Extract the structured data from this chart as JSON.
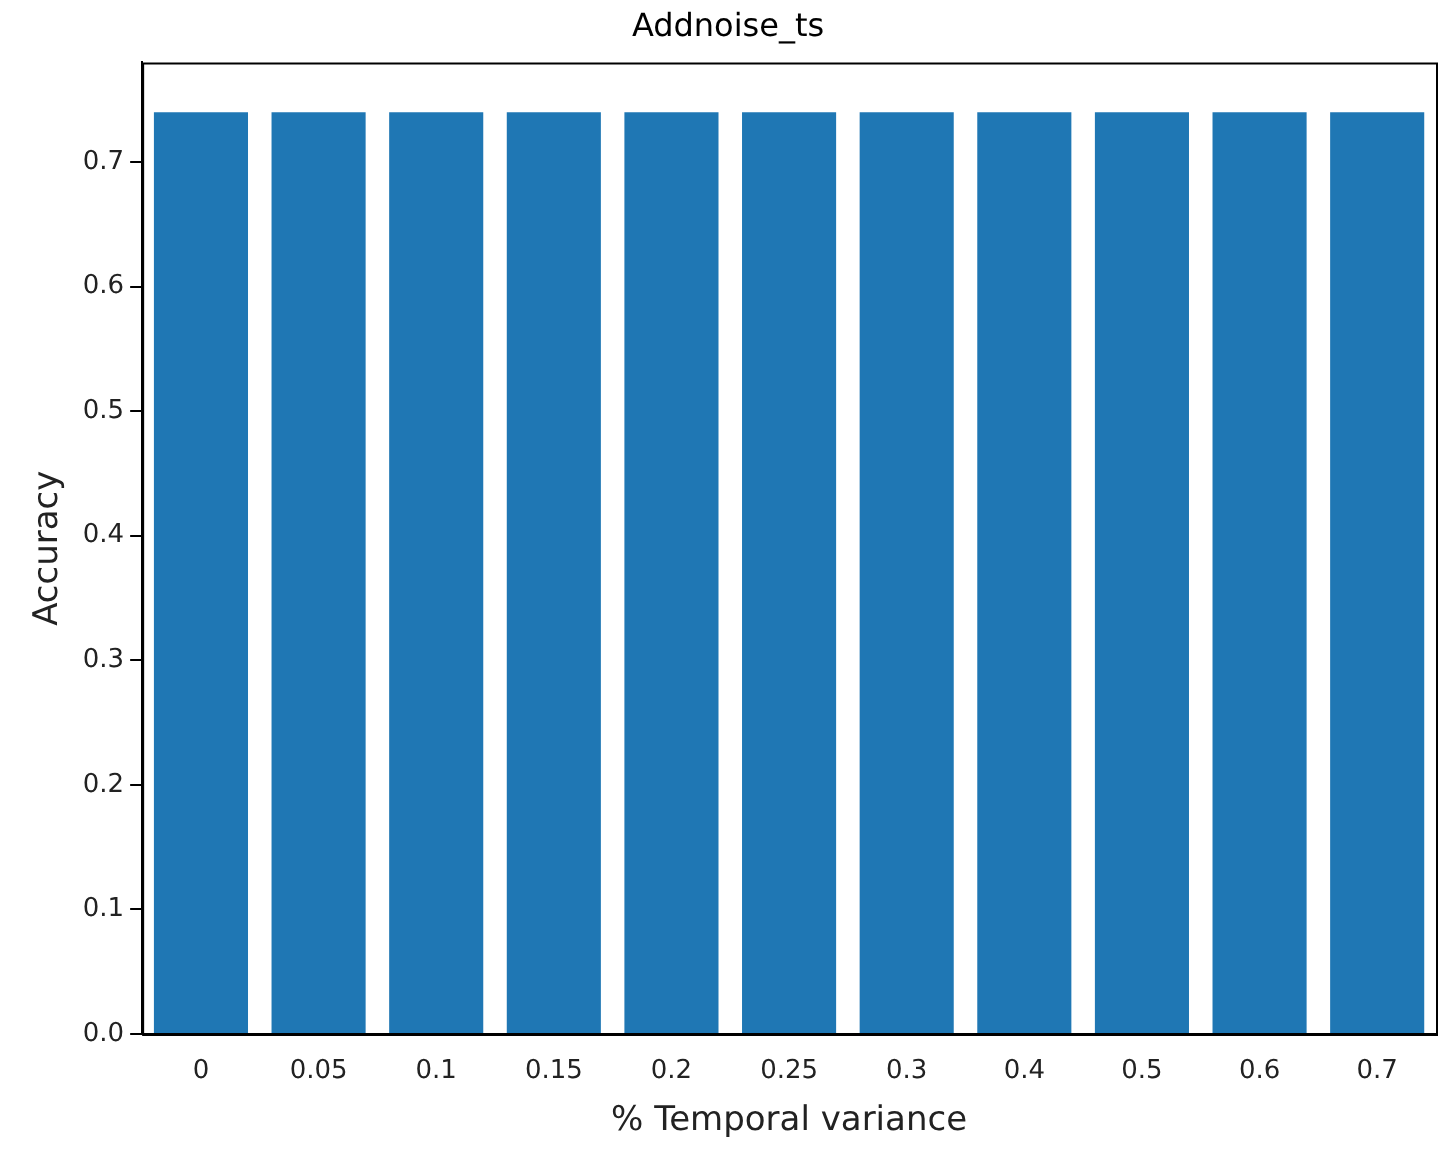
{
  "chart_data": {
    "type": "bar",
    "title": "Addnoise_ts",
    "xlabel": "% Temporal variance",
    "ylabel": "Accuracy",
    "categories": [
      "0",
      "0.05",
      "0.1",
      "0.15",
      "0.2",
      "0.25",
      "0.3",
      "0.4",
      "0.5",
      "0.6",
      "0.7"
    ],
    "values": [
      0.74,
      0.74,
      0.74,
      0.74,
      0.74,
      0.74,
      0.74,
      0.74,
      0.74,
      0.74,
      0.74
    ],
    "color": "#1f77b4",
    "ylim": [
      0,
      0.78
    ],
    "yticks": [
      {
        "value": 0,
        "label": "0.0"
      },
      0.1,
      0.2,
      0.3,
      0.4,
      0.5,
      0.6,
      0.7
    ],
    "grid": false,
    "legend": false
  }
}
